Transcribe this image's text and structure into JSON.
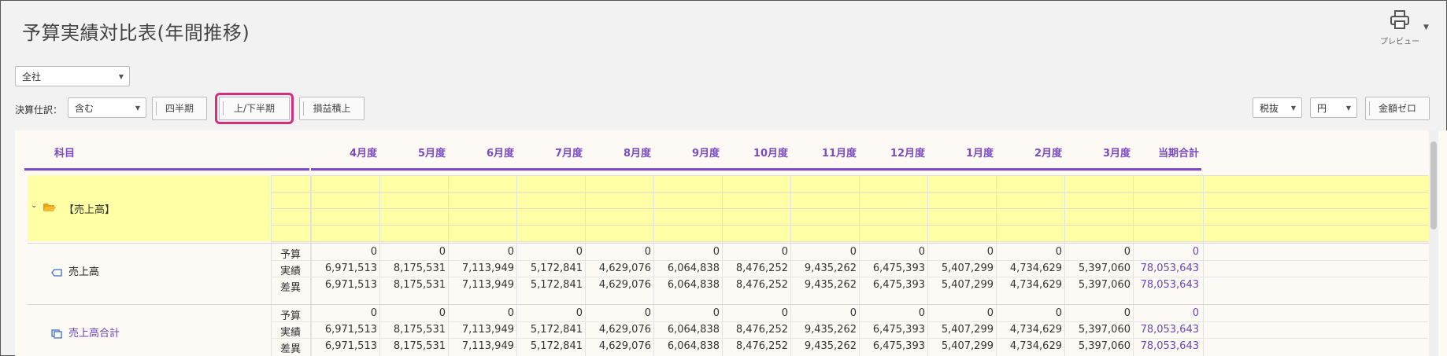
{
  "title": "予算実績対比表(年間推移)",
  "preview": {
    "label": "プレビュー",
    "icon": "printer-icon"
  },
  "filters": {
    "company": "全社",
    "closing_label": "決算仕訳：",
    "closing_value": "含む",
    "btn_quarter": "四半期",
    "btn_half": "上/下半期",
    "btn_cumulative": "損益積上",
    "tax": "税抜",
    "unit": "円",
    "btn_zero": "金額ゼロ"
  },
  "table": {
    "headers": [
      "科目",
      "4月度",
      "5月度",
      "6月度",
      "7月度",
      "8月度",
      "9月度",
      "10月度",
      "11月度",
      "12月度",
      "1月度",
      "2月度",
      "3月度",
      "当期合計"
    ],
    "folder": {
      "label": "【売上高】"
    },
    "accounts": [
      {
        "name": "売上高",
        "rows": [
          {
            "type": "予算",
            "values": [
              "0",
              "0",
              "0",
              "0",
              "0",
              "0",
              "0",
              "0",
              "0",
              "0",
              "0",
              "0"
            ],
            "total": "0"
          },
          {
            "type": "実績",
            "values": [
              "6,971,513",
              "8,175,531",
              "7,113,949",
              "5,172,841",
              "4,629,076",
              "6,064,838",
              "8,476,252",
              "9,435,262",
              "6,475,393",
              "5,407,299",
              "4,734,629",
              "5,397,060"
            ],
            "total": "78,053,643"
          },
          {
            "type": "差異",
            "values": [
              "6,971,513",
              "8,175,531",
              "7,113,949",
              "5,172,841",
              "4,629,076",
              "6,064,838",
              "8,476,252",
              "9,435,262",
              "6,475,393",
              "5,407,299",
              "4,734,629",
              "5,397,060"
            ],
            "total": "78,053,643"
          }
        ]
      },
      {
        "name": "売上高合計",
        "rows": [
          {
            "type": "予算",
            "values": [
              "0",
              "0",
              "0",
              "0",
              "0",
              "0",
              "0",
              "0",
              "0",
              "0",
              "0",
              "0"
            ],
            "total": "0"
          },
          {
            "type": "実績",
            "values": [
              "6,971,513",
              "8,175,531",
              "7,113,949",
              "5,172,841",
              "4,629,076",
              "6,064,838",
              "8,476,252",
              "9,435,262",
              "6,475,393",
              "5,407,299",
              "4,734,629",
              "5,397,060"
            ],
            "total": "78,053,643"
          },
          {
            "type": "差異",
            "values": [
              "6,971,513",
              "8,175,531",
              "7,113,949",
              "5,172,841",
              "4,629,076",
              "6,064,838",
              "8,476,252",
              "9,435,262",
              "6,475,393",
              "5,407,299",
              "4,734,629",
              "5,397,060"
            ],
            "total": "78,053,643"
          }
        ]
      }
    ]
  },
  "colors": {
    "accent": "#7b4bc6",
    "highlight": "#d62e7f",
    "folder_band": "#ffffa6",
    "folder_icon": "#f0a020"
  }
}
